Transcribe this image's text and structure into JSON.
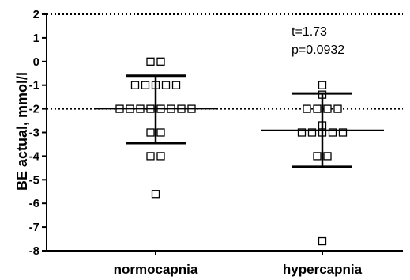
{
  "chart_data": {
    "type": "scatter",
    "ylabel": "BE actual, mmol/l",
    "ylim": [
      -8,
      2
    ],
    "yticks": [
      2,
      1,
      0,
      -1,
      -2,
      -3,
      -4,
      -5,
      -6,
      -7,
      -8
    ],
    "categories": [
      "normocapnia",
      "hypercapnia"
    ],
    "series": [
      {
        "values": [
          0,
          0,
          -1,
          -1,
          -1,
          -1,
          -1,
          -2,
          -2,
          -2,
          -2,
          -2,
          -2,
          -2,
          -2,
          -3,
          -3,
          -4,
          -4,
          -5.6
        ],
        "mean": -2.0,
        "sd_upper": -0.6,
        "sd_lower": -3.45
      },
      {
        "values": [
          -1,
          -1.4,
          -2,
          -2,
          -2,
          -2,
          -2.7,
          -3,
          -3,
          -3,
          -3,
          -3,
          -4,
          -4,
          -7.6
        ],
        "mean": -2.9,
        "sd_upper": -1.35,
        "sd_lower": -4.45
      }
    ],
    "reference_lines": [
      2,
      -2
    ],
    "annotation": [
      "t=1.73",
      "p=0.0932"
    ]
  }
}
